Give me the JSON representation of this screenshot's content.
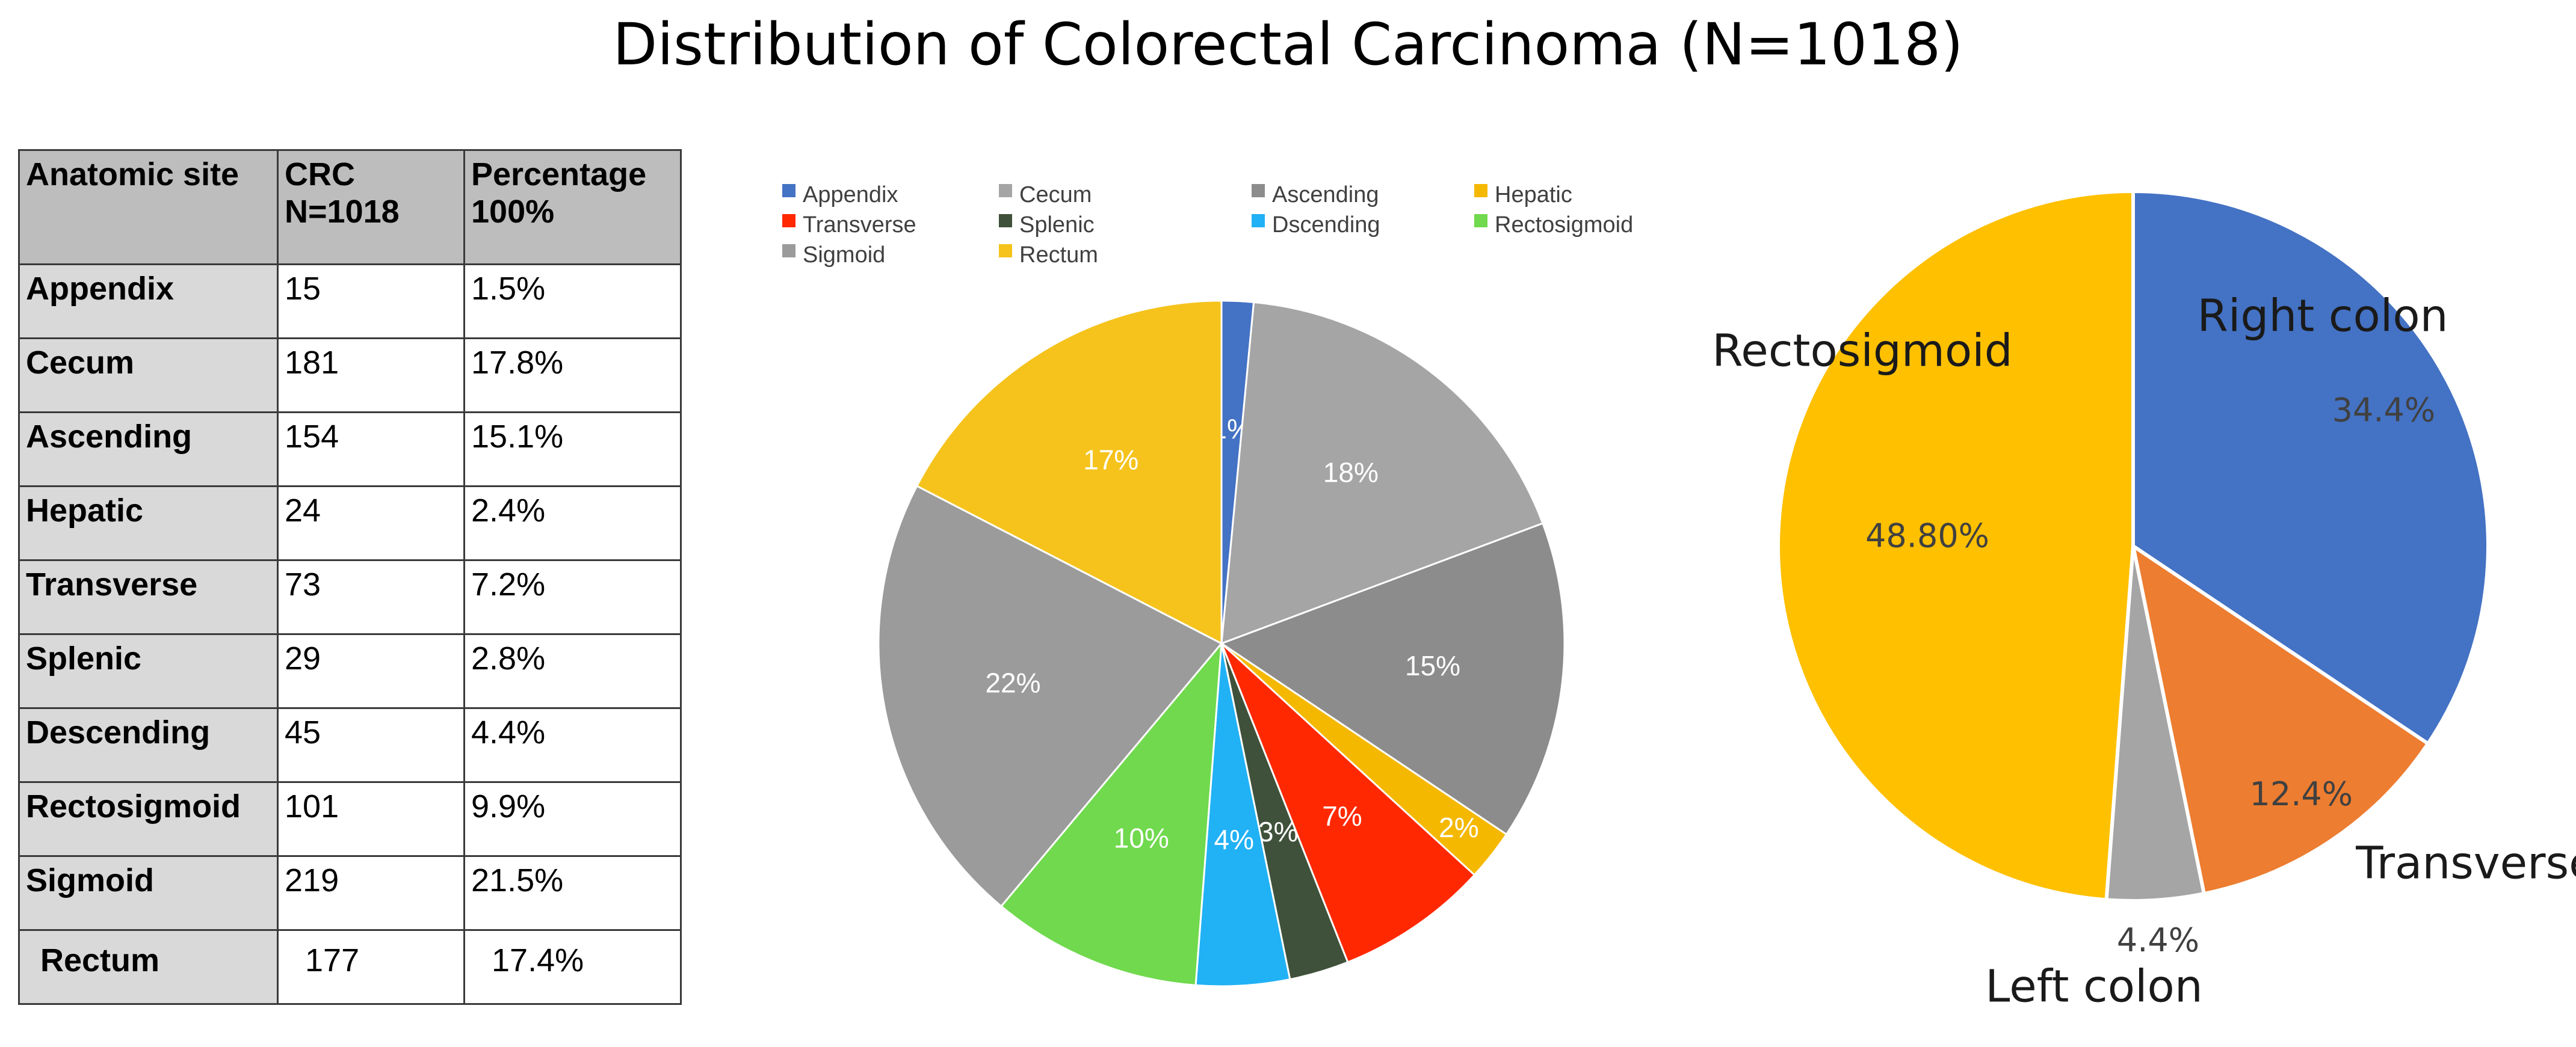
{
  "title": "Distribution of Colorectal Carcinoma (N=1018)",
  "table": {
    "headers": [
      "Anatomic site",
      "CRC\nN=1018",
      "Percentage\n100%"
    ],
    "rows": [
      {
        "site": "Appendix",
        "count": "15",
        "pct": "1.5%"
      },
      {
        "site": "Cecum",
        "count": "181",
        "pct": "17.8%"
      },
      {
        "site": "Ascending",
        "count": "154",
        "pct": "15.1%"
      },
      {
        "site": "Hepatic",
        "count": "24",
        "pct": "2.4%"
      },
      {
        "site": "Transverse",
        "count": "73",
        "pct": "7.2%"
      },
      {
        "site": "Splenic",
        "count": "29",
        "pct": "2.8%"
      },
      {
        "site": "Descending",
        "count": "45",
        "pct": "4.4%"
      },
      {
        "site": "Rectosigmoid",
        "count": "101",
        "pct": "9.9%"
      },
      {
        "site": "Sigmoid",
        "count": "219",
        "pct": "21.5%"
      },
      {
        "site": "Rectum",
        "count": "177",
        "pct": "17.4%"
      }
    ]
  },
  "chart_data": [
    {
      "type": "pie",
      "title": "",
      "legend_position": "top",
      "start": "top, clockwise",
      "slices": [
        {
          "name": "Appendix",
          "legend": "Appendix",
          "value": 1.5,
          "label": "1%",
          "color": "#4472c4"
        },
        {
          "name": "Cecum",
          "legend": "Cecum",
          "value": 17.8,
          "label": "18%",
          "color": "#a5a5a5"
        },
        {
          "name": "Ascending",
          "legend": "Ascending",
          "value": 15.1,
          "label": "15%",
          "color": "#8c8c8c"
        },
        {
          "name": "Hepatic",
          "legend": "Hepatic",
          "value": 2.4,
          "label": "2%",
          "color": "#f5b800"
        },
        {
          "name": "Transverse",
          "legend": "Transverse",
          "value": 7.2,
          "label": "7%",
          "color": "#ff2800"
        },
        {
          "name": "Splenic",
          "legend": "Splenic",
          "value": 2.8,
          "label": "3%",
          "color": "#3f513a"
        },
        {
          "name": "Descending",
          "legend": "Dscending",
          "value": 4.4,
          "label": "4%",
          "color": "#21b1f5"
        },
        {
          "name": "Rectosigmoid",
          "legend": "Rectosigmoid",
          "value": 9.9,
          "label": "10%",
          "color": "#70d94d"
        },
        {
          "name": "Sigmoid",
          "legend": "Sigmoid",
          "value": 21.5,
          "label": "22%",
          "color": "#9b9b9b"
        },
        {
          "name": "Rectum",
          "legend": "Rectum",
          "value": 17.4,
          "label": "17%",
          "color": "#f5c31c"
        }
      ]
    },
    {
      "type": "pie",
      "title": "",
      "start": "top, clockwise",
      "slices": [
        {
          "name": "Right colon",
          "value": 34.4,
          "label": "34.4%",
          "color": "#4472c4"
        },
        {
          "name": "Transverse",
          "value": 12.4,
          "label": "12.4%",
          "color": "#ed7d31"
        },
        {
          "name": "Left colon",
          "value": 4.4,
          "label": "4.4%",
          "color": "#a5a5a5"
        },
        {
          "name": "Rectosigmoid",
          "value": 48.8,
          "label": "48.80%",
          "color": "#ffc000"
        }
      ]
    }
  ]
}
